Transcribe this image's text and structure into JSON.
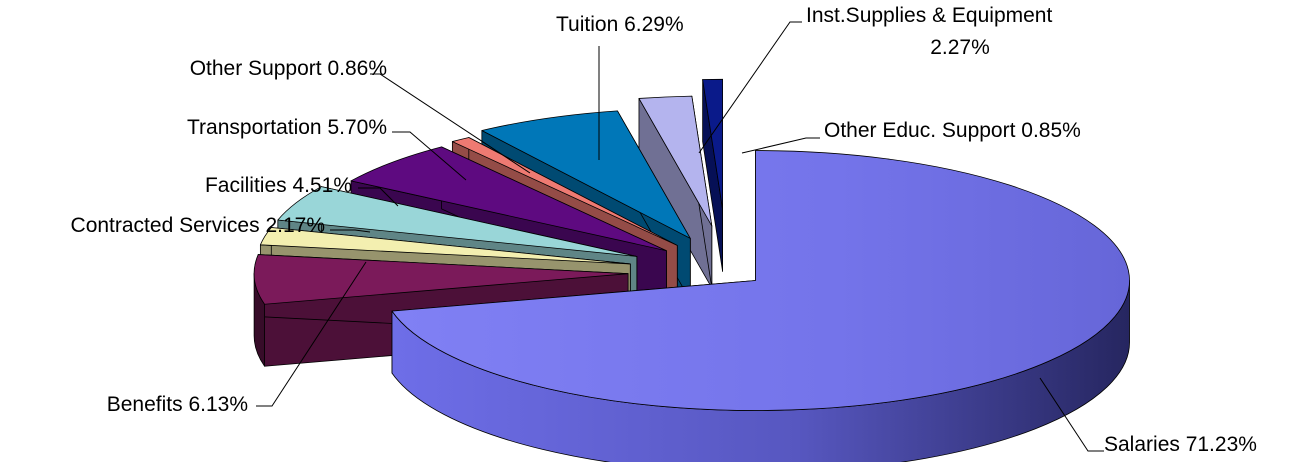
{
  "chart_data": {
    "type": "pie",
    "title": "",
    "slices": [
      {
        "label": "Salaries",
        "value": 71.23,
        "display": "Salaries 71.23%",
        "color": "#7777ee"
      },
      {
        "label": "Benefits",
        "value": 6.13,
        "display": "Benefits 6.13%",
        "color": "#7b1a5a"
      },
      {
        "label": "Contracted Services",
        "value": 2.17,
        "display": "Contracted Services 2.17%",
        "color": "#f3efb0"
      },
      {
        "label": "Facilities",
        "value": 4.51,
        "display": "Facilities 4.51%",
        "color": "#99d6d8"
      },
      {
        "label": "Transportation",
        "value": 5.7,
        "display": "Transportation 5.70%",
        "color": "#5e0a80"
      },
      {
        "label": "Other Support",
        "value": 0.86,
        "display": "Other Support 0.86%",
        "color": "#ee7a72"
      },
      {
        "label": "Tuition",
        "value": 6.29,
        "display": "Tuition 6.29%",
        "color": "#0077b8"
      },
      {
        "label": "Inst.Supplies & Equipment",
        "value": 2.27,
        "display": [
          "Inst.Supplies & Equipment",
          "2.27%"
        ],
        "color": "#b4b4ee"
      },
      {
        "label": "Other Educ. Support",
        "value": 0.85,
        "display": "Other Educ. Support 0.85%",
        "color": "#0a1a8a"
      }
    ],
    "legend": "none",
    "style": "3d-exploded-pie"
  }
}
